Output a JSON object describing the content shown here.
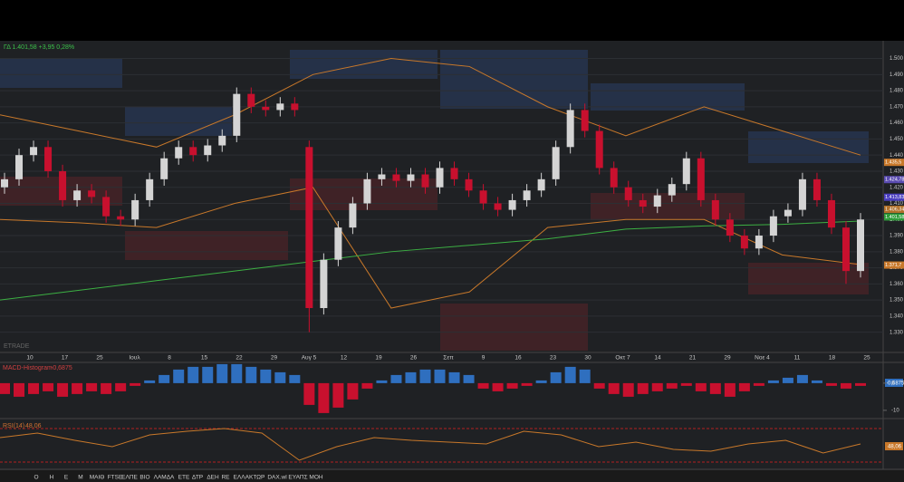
{
  "header": {
    "quote": "ΓΔ 1.401,58 +3,95 0,28%",
    "watermark": "ETRADE"
  },
  "price_chart": {
    "type": "candlestick",
    "ylim": [
      1318,
      1511
    ],
    "yticks": [
      {
        "value": 1500,
        "label": "1.500"
      },
      {
        "value": 1490,
        "label": "1.490"
      },
      {
        "value": 1480,
        "label": "1.480"
      },
      {
        "value": 1470,
        "label": "1.470"
      },
      {
        "value": 1460,
        "label": "1.460"
      },
      {
        "value": 1450,
        "label": "1.450"
      },
      {
        "value": 1440,
        "label": "1.440"
      },
      {
        "value": 1430,
        "label": "1.430"
      },
      {
        "value": 1420,
        "label": "1.420"
      },
      {
        "value": 1410,
        "label": "1.410"
      },
      {
        "value": 1400,
        "label": "1.400"
      },
      {
        "value": 1390,
        "label": "1.390"
      },
      {
        "value": 1380,
        "label": "1.380"
      },
      {
        "value": 1370,
        "label": "1.370"
      },
      {
        "value": 1360,
        "label": "1.360"
      },
      {
        "value": 1350,
        "label": "1.350"
      },
      {
        "value": 1340,
        "label": "1.340"
      },
      {
        "value": 1330,
        "label": "1.330"
      }
    ],
    "x_labels": [
      "10",
      "17",
      "25",
      "Ιουλ",
      "8",
      "15",
      "22",
      "29",
      "Αυγ 5",
      "12",
      "19",
      "26",
      "Σεπ",
      "9",
      "16",
      "23",
      "30",
      "Οκτ 7",
      "14",
      "21",
      "29",
      "Νοε 4",
      "11",
      "18",
      "25"
    ],
    "up_color": "#d4d4d4",
    "down_color": "#c8102e",
    "candles": [
      [
        1420,
        1429,
        1416,
        1425
      ],
      [
        1425,
        1444,
        1421,
        1440
      ],
      [
        1440,
        1449,
        1436,
        1445
      ],
      [
        1445,
        1449,
        1426,
        1430
      ],
      [
        1430,
        1434,
        1408,
        1412
      ],
      [
        1412,
        1422,
        1408,
        1418
      ],
      [
        1418,
        1422,
        1410,
        1414
      ],
      [
        1414,
        1418,
        1398,
        1402
      ],
      [
        1402,
        1406,
        1396,
        1400
      ],
      [
        1400,
        1416,
        1396,
        1412
      ],
      [
        1412,
        1429,
        1408,
        1425
      ],
      [
        1425,
        1442,
        1421,
        1438
      ],
      [
        1438,
        1449,
        1434,
        1445
      ],
      [
        1445,
        1449,
        1436,
        1440
      ],
      [
        1440,
        1450,
        1436,
        1446
      ],
      [
        1446,
        1456,
        1442,
        1452
      ],
      [
        1452,
        1482,
        1448,
        1478
      ],
      [
        1478,
        1482,
        1466,
        1470
      ],
      [
        1470,
        1474,
        1464,
        1468
      ],
      [
        1468,
        1476,
        1464,
        1472
      ],
      [
        1472,
        1476,
        1464,
        1468
      ],
      [
        1445,
        1449,
        1330,
        1345
      ],
      [
        1345,
        1379,
        1341,
        1375
      ],
      [
        1375,
        1399,
        1371,
        1395
      ],
      [
        1395,
        1414,
        1391,
        1410
      ],
      [
        1410,
        1429,
        1406,
        1425
      ],
      [
        1425,
        1432,
        1421,
        1428
      ],
      [
        1428,
        1432,
        1420,
        1424
      ],
      [
        1424,
        1432,
        1420,
        1428
      ],
      [
        1428,
        1432,
        1416,
        1420
      ],
      [
        1420,
        1436,
        1416,
        1432
      ],
      [
        1432,
        1436,
        1421,
        1425
      ],
      [
        1425,
        1429,
        1414,
        1418
      ],
      [
        1418,
        1422,
        1406,
        1410
      ],
      [
        1410,
        1414,
        1402,
        1406
      ],
      [
        1406,
        1416,
        1402,
        1412
      ],
      [
        1412,
        1422,
        1408,
        1418
      ],
      [
        1418,
        1429,
        1414,
        1425
      ],
      [
        1425,
        1449,
        1421,
        1445
      ],
      [
        1445,
        1472,
        1441,
        1468
      ],
      [
        1468,
        1472,
        1451,
        1455
      ],
      [
        1455,
        1459,
        1428,
        1432
      ],
      [
        1432,
        1436,
        1416,
        1420
      ],
      [
        1420,
        1424,
        1408,
        1412
      ],
      [
        1412,
        1416,
        1404,
        1408
      ],
      [
        1408,
        1419,
        1404,
        1415
      ],
      [
        1415,
        1426,
        1411,
        1422
      ],
      [
        1422,
        1442,
        1418,
        1438
      ],
      [
        1438,
        1442,
        1408,
        1412
      ],
      [
        1412,
        1416,
        1396,
        1400
      ],
      [
        1400,
        1404,
        1386,
        1390
      ],
      [
        1390,
        1394,
        1378,
        1382
      ],
      [
        1382,
        1394,
        1378,
        1390
      ],
      [
        1390,
        1406,
        1386,
        1402
      ],
      [
        1402,
        1410,
        1398,
        1406
      ],
      [
        1406,
        1429,
        1402,
        1425
      ],
      [
        1425,
        1429,
        1408,
        1412
      ],
      [
        1412,
        1416,
        1391,
        1395
      ],
      [
        1395,
        1399,
        1360,
        1368
      ],
      [
        1368,
        1404,
        1364,
        1400
      ]
    ],
    "lines": [
      {
        "color": "#c8782a",
        "values": [
          1465,
          1455,
          1445,
          1465,
          1490,
          1500,
          1495,
          1470,
          1452,
          1470,
          1455,
          1440
        ]
      },
      {
        "color": "#c8782a",
        "values": [
          1400,
          1398,
          1395,
          1410,
          1420,
          1345,
          1355,
          1395,
          1400,
          1400,
          1378,
          1372
        ]
      },
      {
        "color": "#3cb043",
        "values": [
          1350,
          1356,
          1362,
          1368,
          1374,
          1380,
          1384,
          1388,
          1394,
          1396,
          1397,
          1399
        ]
      }
    ],
    "price_labels": [
      {
        "value": 1435.5,
        "label": "1.435,5",
        "color": "#c8782a"
      },
      {
        "value": 1424.78,
        "label": "1.424,78",
        "color": "#5a4bb0"
      },
      {
        "value": 1413.83,
        "label": "1.413,83",
        "color": "#4b3fc0"
      },
      {
        "value": 1406.34,
        "label": "1.406,34",
        "color": "#b0702a"
      },
      {
        "value": 1401.58,
        "label": "1.401,58",
        "color": "#2e9c3a"
      },
      {
        "value": 1371.7,
        "label": "1.371,7",
        "color": "#c8782a"
      }
    ]
  },
  "macd": {
    "title": "MACD-Histogram",
    "value_label": "-0,6875",
    "ylim": [
      -12.7,
      7.3
    ],
    "yticks": [
      0,
      -10
    ],
    "pos_color": "#2f6fbf",
    "neg_color": "#c8102e",
    "values": [
      -4,
      -5,
      -4,
      -3,
      -5,
      -4,
      -3,
      -4,
      -3,
      -1,
      1,
      3,
      5,
      6,
      6,
      7,
      7,
      6,
      5,
      4,
      3,
      -8,
      -11,
      -9,
      -6,
      -2,
      1,
      3,
      4,
      5,
      5,
      4,
      3,
      -2,
      -3,
      -2,
      -1,
      1,
      4,
      6,
      5,
      -2,
      -4,
      -5,
      -4,
      -3,
      -2,
      -1,
      -3,
      -4,
      -5,
      -3,
      -1,
      1,
      2,
      3,
      1,
      -1,
      -2,
      -1
    ]
  },
  "rsi": {
    "title": "RSI(14)",
    "value_label": "48,06",
    "ylim": [
      20,
      75
    ],
    "color": "#c8782a",
    "values": [
      55,
      60,
      52,
      45,
      58,
      62,
      65,
      60,
      30,
      45,
      55,
      52,
      50,
      48,
      62,
      58,
      45,
      50,
      42,
      40,
      48,
      52,
      38,
      48
    ]
  },
  "toolbar": {
    "items": [
      "Ο",
      "Η",
      "Ε",
      "Μ",
      "ΜΑΙΘ",
      "FTSE",
      "ΕΛΠΕ",
      "ΒΙΟ",
      "ΛΑΜΔΑ",
      "ΕΤΕ",
      "ΔΤΡ",
      "ΔΕΗ",
      "RE",
      "ΕΛΛΑΚΤΩΡ",
      "DAX.wl",
      "ΕΥΑΠΣ",
      "ΜΟΗ"
    ]
  }
}
